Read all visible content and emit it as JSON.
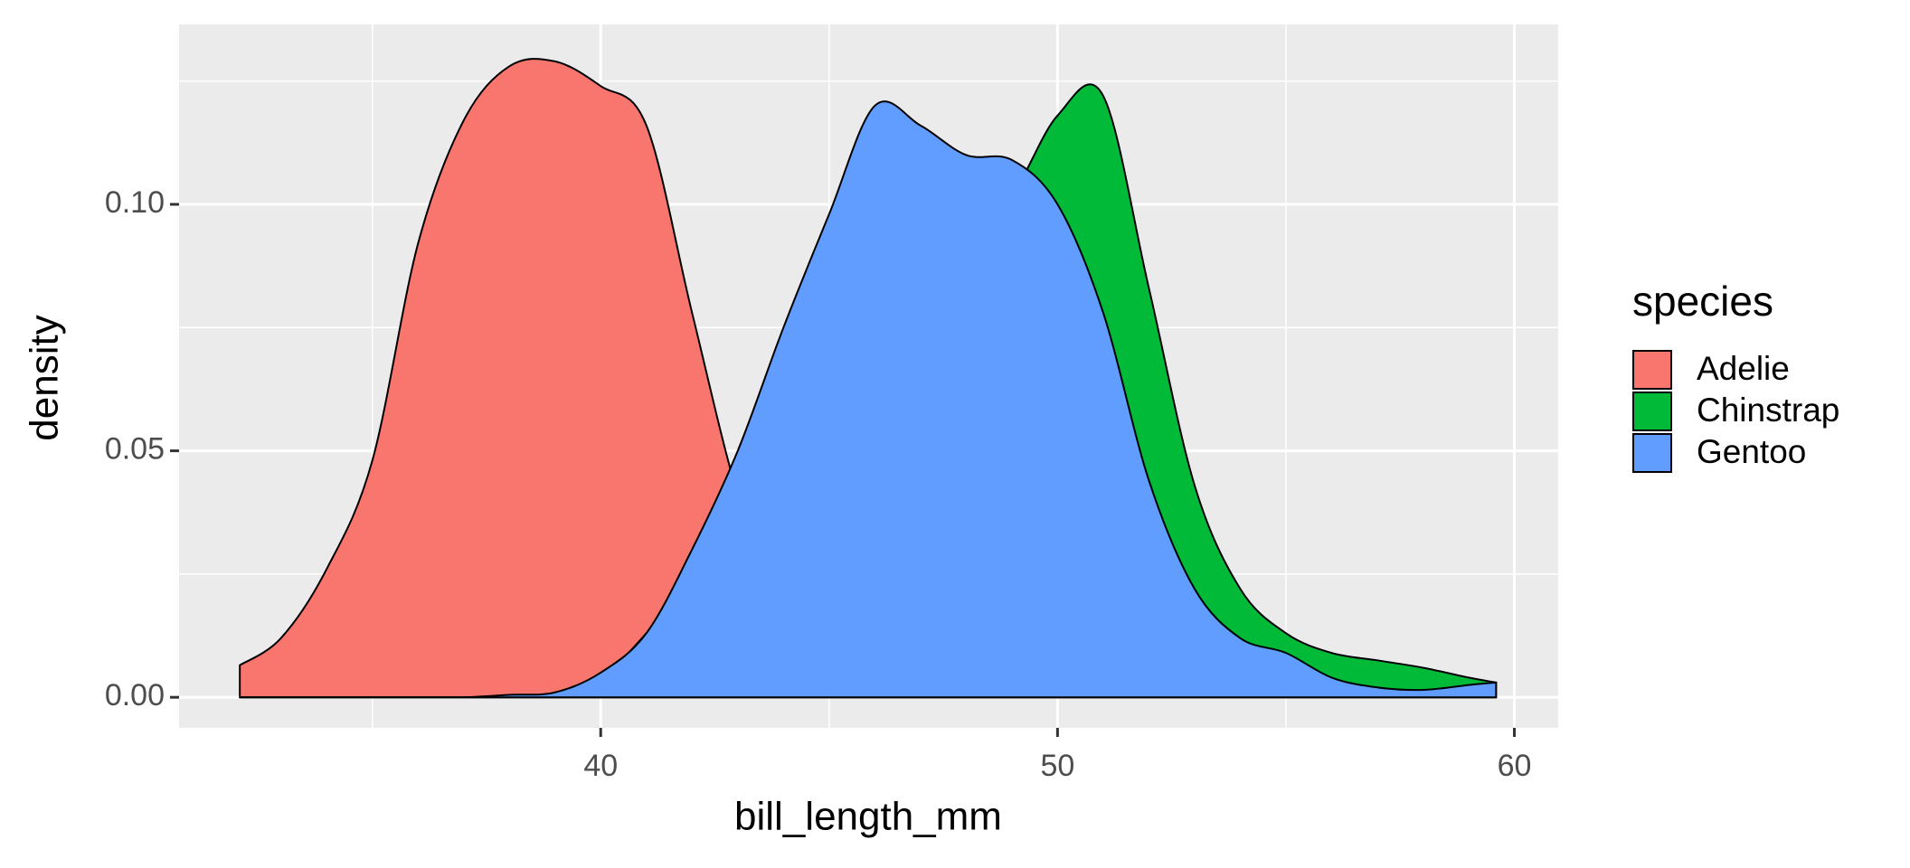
{
  "chart_data": {
    "type": "density",
    "x_label": "bill_length_mm",
    "y_label": "density",
    "x": [
      32.1,
      33,
      34,
      35,
      36,
      37,
      38,
      39,
      40,
      41,
      42,
      43,
      44,
      45,
      46,
      47,
      48,
      49,
      50,
      51,
      52,
      53,
      54,
      55,
      56,
      57,
      58,
      59,
      59.6
    ],
    "series": [
      {
        "name": "Adelie",
        "color": "#F8766D",
        "values": [
          0.0065,
          0.012,
          0.026,
          0.048,
          0.092,
          0.117,
          0.128,
          0.129,
          0.124,
          0.116,
          0.078,
          0.041,
          0.016,
          0.005,
          0.0015,
          0.0004,
          0,
          0,
          0,
          0,
          0,
          0,
          0,
          0,
          0,
          0,
          0,
          0,
          0
        ]
      },
      {
        "name": "Chinstrap",
        "color": "#00BA38",
        "values": [
          0,
          0,
          0,
          0,
          0,
          0,
          0,
          0.0005,
          0.004,
          0.013,
          0.025,
          0.04,
          0.06,
          0.075,
          0.085,
          0.09,
          0.095,
          0.102,
          0.118,
          0.122,
          0.083,
          0.043,
          0.022,
          0.013,
          0.009,
          0.0075,
          0.006,
          0.004,
          0.003
        ]
      },
      {
        "name": "Gentoo",
        "color": "#619CFF",
        "values": [
          0,
          0,
          0,
          0,
          0,
          0,
          0.0005,
          0.001,
          0.005,
          0.013,
          0.03,
          0.05,
          0.075,
          0.098,
          0.12,
          0.116,
          0.11,
          0.109,
          0.1,
          0.078,
          0.044,
          0.022,
          0.012,
          0.009,
          0.004,
          0.002,
          0.0015,
          0.0025,
          0.003
        ]
      }
    ],
    "xlim": [
      30.77,
      60.96
    ],
    "xticks": [
      40,
      50,
      60
    ],
    "xminor": [
      35,
      45,
      55
    ],
    "ylim": [
      -0.0062,
      0.1365
    ],
    "yticks": [
      {
        "value": 0,
        "label": "0.00"
      },
      {
        "value": 0.05,
        "label": "0.05"
      },
      {
        "value": 0.1,
        "label": "0.10"
      }
    ],
    "yminor": [
      0.025,
      0.075,
      0.125
    ],
    "grid": true,
    "legend_title": "species",
    "legend_position": "right"
  }
}
